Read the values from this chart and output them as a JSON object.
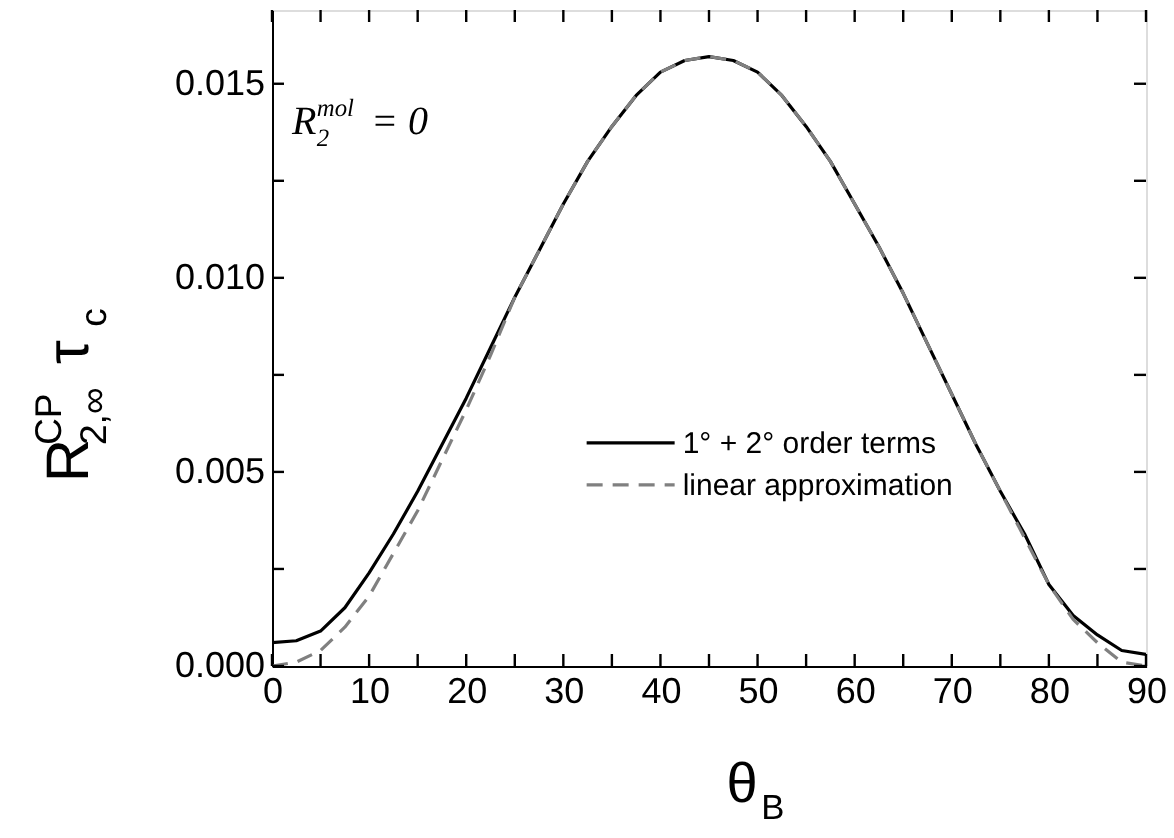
{
  "chart_data": {
    "type": "line",
    "xlabel": "θ$_{B}$",
    "ylabel": "R$_{2,∞}$$^{CP}$ τ$_{c}$",
    "annotations": [
      "R$_{2}$$^{mol}$ = 0"
    ],
    "x": [
      0,
      2.5,
      5,
      7.5,
      10,
      12.5,
      15,
      17.5,
      20,
      22.5,
      25,
      27.5,
      30,
      32.5,
      35,
      37.5,
      40,
      42.5,
      45,
      47.5,
      50,
      52.5,
      55,
      57.5,
      60,
      62.5,
      65,
      67.5,
      70,
      72.5,
      75,
      77.5,
      80,
      82.5,
      85,
      87.5,
      90
    ],
    "series": [
      {
        "name": "1° + 2° order terms",
        "color": "#000000",
        "line_style": "solid",
        "values": [
          0.0006,
          0.00065,
          0.0009,
          0.0015,
          0.0024,
          0.0034,
          0.0045,
          0.0057,
          0.0069,
          0.0082,
          0.0095,
          0.0107,
          0.0119,
          0.013,
          0.0139,
          0.0147,
          0.0153,
          0.0156,
          0.0157,
          0.0156,
          0.0153,
          0.0147,
          0.0139,
          0.013,
          0.0119,
          0.0108,
          0.0096,
          0.0083,
          0.007,
          0.0057,
          0.0045,
          0.0034,
          0.0021,
          0.0013,
          0.0008,
          0.0004,
          0.0003
        ]
      },
      {
        "name": "linear approximation",
        "color": "#808080",
        "line_style": "dashed",
        "values": [
          0.0,
          0.0001,
          0.0004,
          0.001,
          0.0018,
          0.0029,
          0.004,
          0.0053,
          0.0066,
          0.008,
          0.0095,
          0.0107,
          0.0119,
          0.013,
          0.0139,
          0.0147,
          0.0153,
          0.0156,
          0.0157,
          0.0156,
          0.0153,
          0.0147,
          0.0139,
          0.013,
          0.0119,
          0.0108,
          0.0096,
          0.0083,
          0.007,
          0.0057,
          0.0045,
          0.0033,
          0.0021,
          0.0012,
          0.0006,
          0.0001,
          0.0
        ]
      }
    ],
    "xlim": [
      0,
      90
    ],
    "xticks": [
      0,
      {
        "value": 5,
        "label": null
      },
      10,
      {
        "value": 15,
        "label": null
      },
      20,
      {
        "value": 25,
        "label": null
      },
      30,
      {
        "value": 35,
        "label": null
      },
      40,
      {
        "value": 45,
        "label": null
      },
      50,
      {
        "value": 55,
        "label": null
      },
      60,
      {
        "value": 65,
        "label": null
      },
      70,
      {
        "value": 75,
        "label": null
      },
      80,
      {
        "value": 85,
        "label": null
      },
      90
    ],
    "ylim": [
      0,
      0.0169
    ],
    "yticks": [
      {
        "value": 0,
        "label": "0.000"
      },
      {
        "value": 0.0025,
        "label": null
      },
      0.005,
      {
        "value": 0.0075,
        "label": null
      },
      {
        "value": 0.01,
        "label": "0.010"
      },
      {
        "value": 0.0125,
        "label": null
      },
      0.015
    ],
    "grid": false,
    "legend": "bottom"
  }
}
